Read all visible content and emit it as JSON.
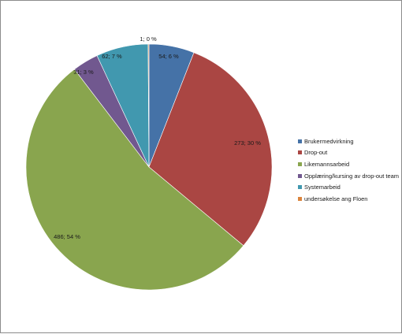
{
  "chart_data": {
    "type": "pie",
    "title": "",
    "series": [
      {
        "name": "Brukermedvirkning",
        "value": 54,
        "percent_label": "54; 6 %",
        "color": "#4572A7"
      },
      {
        "name": "Drop-out",
        "value": 273,
        "percent_label": "273; 30 %",
        "color": "#AA4643"
      },
      {
        "name": "Likemannsarbeid",
        "value": 486,
        "percent_label": "486; 54 %",
        "color": "#89A54E"
      },
      {
        "name": "Opplæring/kursing av drop-out team",
        "value": 31,
        "percent_label": "31; 3 %",
        "color": "#71588F"
      },
      {
        "name": "Systemarbeid",
        "value": 62,
        "percent_label": "62; 7 %",
        "color": "#4198AF"
      },
      {
        "name": "undersøkelse ang Floen",
        "value": 1,
        "percent_label": "1; 0 %",
        "color": "#DB843D"
      }
    ],
    "start_angle_deg": 0,
    "direction": "clockwise",
    "legend_placement": "right"
  }
}
